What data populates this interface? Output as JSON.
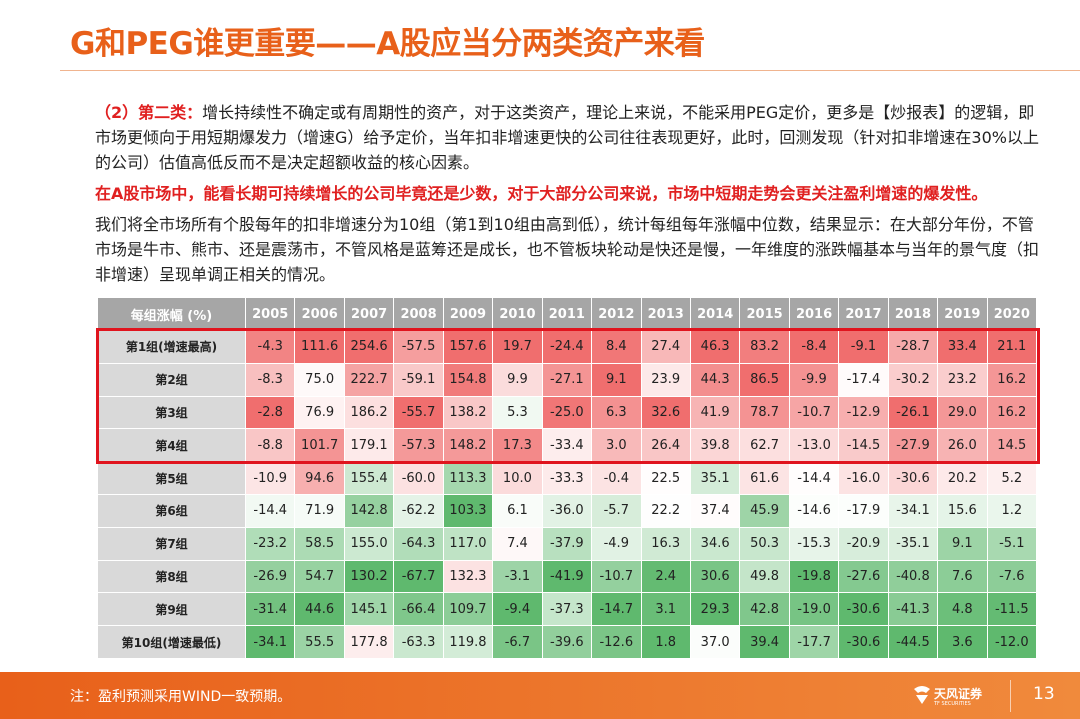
{
  "header": {
    "title": "G和PEG谁更重要——A股应当分两类资产来看"
  },
  "paragraphs": [
    {
      "label": "（2）第二类：",
      "text": "增长持续性不确定或有周期性的资产，对于这类资产，理论上来说，不能采用PEG定价，更多是【炒报表】的逻辑，即市场更倾向于用短期爆发力（增速G）给予定价，当年扣非增速更快的公司往往表现更好，此时，回测发现（针对扣非增速在30%以上的公司）估值高低反而不是决定超额收益的核心因素。"
    },
    {
      "text": "在A股市场中，能看长期可持续增长的公司毕竟还是少数，对于大部分公司来说，市场中短期走势会更关注盈利增速的爆发性。"
    },
    {
      "text": "我们将全市场所有个股每年的扣非增速分为10组（第1到10组由高到低），统计每组每年涨幅中位数，结果显示：在大部分年份，不管市场是牛市、熊市、还是震荡市，不管风格是蓝筹还是成长，也不管板块轮动是快还是慢，一年维度的涨跌幅基本与当年的景气度（扣非增速）呈现单调正相关的情况。"
    }
  ],
  "table": {
    "columns": [
      "每组涨幅 (%)",
      "2005",
      "2006",
      "2007",
      "2008",
      "2009",
      "2010",
      "2011",
      "2012",
      "2013",
      "2014",
      "2015",
      "2016",
      "2017",
      "2018",
      "2019",
      "2020"
    ],
    "rows": [
      [
        "第1组(增速最高)",
        "-4.3",
        "111.6",
        "254.6",
        "-57.5",
        "157.6",
        "19.7",
        "-24.4",
        "8.4",
        "27.4",
        "46.3",
        "83.2",
        "-8.4",
        "-9.1",
        "-28.7",
        "33.4",
        "21.1"
      ],
      [
        "第2组",
        "-8.3",
        "75.0",
        "222.7",
        "-59.1",
        "154.8",
        "9.9",
        "-27.1",
        "9.1",
        "23.9",
        "44.3",
        "86.5",
        "-9.9",
        "-17.4",
        "-30.2",
        "23.2",
        "16.2"
      ],
      [
        "第3组",
        "-2.8",
        "76.9",
        "186.2",
        "-55.7",
        "138.2",
        "5.3",
        "-25.0",
        "6.3",
        "32.6",
        "41.9",
        "78.7",
        "-10.7",
        "-12.9",
        "-26.1",
        "29.0",
        "16.2"
      ],
      [
        "第4组",
        "-8.8",
        "101.7",
        "179.1",
        "-57.3",
        "148.2",
        "17.3",
        "-33.4",
        "3.0",
        "26.4",
        "39.8",
        "62.7",
        "-13.0",
        "-14.5",
        "-27.9",
        "26.0",
        "14.5"
      ],
      [
        "第5组",
        "-10.9",
        "94.6",
        "155.4",
        "-60.0",
        "113.3",
        "10.0",
        "-33.3",
        "-0.4",
        "22.5",
        "35.1",
        "61.6",
        "-14.4",
        "-16.0",
        "-30.6",
        "20.2",
        "5.2"
      ],
      [
        "第6组",
        "-14.4",
        "71.9",
        "142.8",
        "-62.2",
        "103.3",
        "6.1",
        "-36.0",
        "-5.7",
        "22.2",
        "37.4",
        "45.9",
        "-14.6",
        "-17.9",
        "-34.1",
        "15.6",
        "1.2"
      ],
      [
        "第7组",
        "-23.2",
        "58.5",
        "155.0",
        "-64.3",
        "117.0",
        "7.4",
        "-37.9",
        "-4.9",
        "16.3",
        "34.6",
        "50.3",
        "-15.3",
        "-20.9",
        "-35.1",
        "9.1",
        "-5.1"
      ],
      [
        "第8组",
        "-26.9",
        "54.7",
        "130.2",
        "-67.7",
        "132.3",
        "-3.1",
        "-41.9",
        "-10.7",
        "2.4",
        "30.6",
        "49.8",
        "-19.8",
        "-27.6",
        "-40.8",
        "7.6",
        "-7.6"
      ],
      [
        "第9组",
        "-31.4",
        "44.6",
        "145.1",
        "-66.4",
        "109.7",
        "-9.4",
        "-37.3",
        "-14.7",
        "3.1",
        "29.3",
        "42.8",
        "-19.0",
        "-30.6",
        "-41.3",
        "4.8",
        "-11.5"
      ],
      [
        "第10组(增速最低)",
        "-34.1",
        "55.5",
        "177.8",
        "-63.3",
        "119.8",
        "-6.7",
        "-39.6",
        "-12.6",
        "1.8",
        "37.0",
        "39.4",
        "-17.7",
        "-30.6",
        "-44.5",
        "3.6",
        "-12.0"
      ]
    ]
  },
  "footer": {
    "note": "注：盈利预测采用WIND一致预期。",
    "logo": "天风证券",
    "logo_en": "TF SECURITIES",
    "page": "13"
  }
}
